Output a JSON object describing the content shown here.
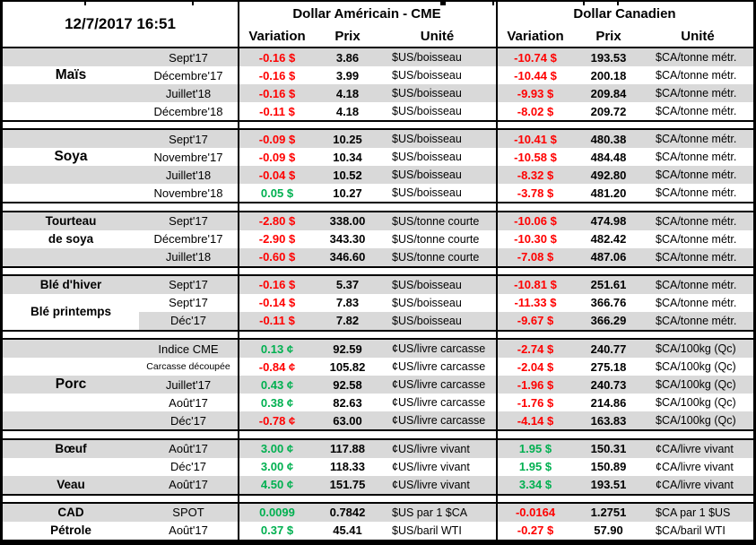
{
  "meta": {
    "timestamp": "12/7/2017 16:51"
  },
  "header": {
    "us_group": "Dollar Américain - CME",
    "ca_group": "Dollar Canadien",
    "col_variation": "Variation",
    "col_prix": "Prix",
    "col_unite": "Unité"
  },
  "colors": {
    "stripe": "#D9D9D9",
    "negative": "#FF0000",
    "positive": "#00B050"
  },
  "sections": [
    {
      "id": "mais",
      "rows": [
        {
          "label": "",
          "period": "Sept'17",
          "us_var": "-0.16 $",
          "us_dir": "neg",
          "us_price": "3.86",
          "us_unit": "$US/boisseau",
          "ca_var": "-10.74 $",
          "ca_dir": "neg",
          "ca_price": "193.53",
          "ca_unit": "$CA/tonne métr."
        },
        {
          "label": "Maïs",
          "label_big": true,
          "period": "Décembre'17",
          "us_var": "-0.16 $",
          "us_dir": "neg",
          "us_price": "3.99",
          "us_unit": "$US/boisseau",
          "ca_var": "-10.44 $",
          "ca_dir": "neg",
          "ca_price": "200.18",
          "ca_unit": "$CA/tonne métr."
        },
        {
          "label": "",
          "period": "Juillet'18",
          "us_var": "-0.16 $",
          "us_dir": "neg",
          "us_price": "4.18",
          "us_unit": "$US/boisseau",
          "ca_var": "-9.93 $",
          "ca_dir": "neg",
          "ca_price": "209.84",
          "ca_unit": "$CA/tonne métr."
        },
        {
          "label": "",
          "period": "Décembre'18",
          "us_var": "-0.11 $",
          "us_dir": "neg",
          "us_price": "4.18",
          "us_unit": "$US/boisseau",
          "ca_var": "-8.02 $",
          "ca_dir": "neg",
          "ca_price": "209.72",
          "ca_unit": "$CA/tonne métr."
        }
      ]
    },
    {
      "id": "soya",
      "rows": [
        {
          "label": "",
          "period": "Sept'17",
          "us_var": "-0.09 $",
          "us_dir": "neg",
          "us_price": "10.25",
          "us_unit": "$US/boisseau",
          "ca_var": "-10.41 $",
          "ca_dir": "neg",
          "ca_price": "480.38",
          "ca_unit": "$CA/tonne métr."
        },
        {
          "label": "Soya",
          "label_big": true,
          "period": "Novembre'17",
          "us_var": "-0.09 $",
          "us_dir": "neg",
          "us_price": "10.34",
          "us_unit": "$US/boisseau",
          "ca_var": "-10.58 $",
          "ca_dir": "neg",
          "ca_price": "484.48",
          "ca_unit": "$CA/tonne métr."
        },
        {
          "label": "",
          "period": "Juillet'18",
          "us_var": "-0.04 $",
          "us_dir": "neg",
          "us_price": "10.52",
          "us_unit": "$US/boisseau",
          "ca_var": "-8.32 $",
          "ca_dir": "neg",
          "ca_price": "492.80",
          "ca_unit": "$CA/tonne métr."
        },
        {
          "label": "",
          "period": "Novembre'18",
          "us_var": "0.05 $",
          "us_dir": "pos",
          "us_price": "10.27",
          "us_unit": "$US/boisseau",
          "ca_var": "-3.78 $",
          "ca_dir": "neg",
          "ca_price": "481.20",
          "ca_unit": "$CA/tonne métr."
        }
      ]
    },
    {
      "id": "tourteau-de-soya",
      "rows": [
        {
          "label": "Tourteau",
          "period": "Sept'17",
          "us_var": "-2.80 $",
          "us_dir": "neg",
          "us_price": "338.00",
          "us_unit": "$US/tonne courte",
          "ca_var": "-10.06 $",
          "ca_dir": "neg",
          "ca_price": "474.98",
          "ca_unit": "$CA/tonne métr."
        },
        {
          "label": "de soya",
          "period": "Décembre'17",
          "us_var": "-2.90 $",
          "us_dir": "neg",
          "us_price": "343.30",
          "us_unit": "$US/tonne courte",
          "ca_var": "-10.30 $",
          "ca_dir": "neg",
          "ca_price": "482.42",
          "ca_unit": "$CA/tonne métr."
        },
        {
          "label": "",
          "period": "Juillet'18",
          "us_var": "-0.60 $",
          "us_dir": "neg",
          "us_price": "346.60",
          "us_unit": "$US/tonne courte",
          "ca_var": "-7.08 $",
          "ca_dir": "neg",
          "ca_price": "487.06",
          "ca_unit": "$CA/tonne métr."
        }
      ]
    },
    {
      "id": "ble",
      "rows": [
        {
          "label": "Blé d'hiver",
          "period": "Sept'17",
          "us_var": "-0.16 $",
          "us_dir": "neg",
          "us_price": "5.37",
          "us_unit": "$US/boisseau",
          "ca_var": "-10.81 $",
          "ca_dir": "neg",
          "ca_price": "251.61",
          "ca_unit": "$CA/tonne métr."
        },
        {
          "label": "Blé printemps",
          "label_span2": true,
          "label_white": true,
          "period": "Sept'17",
          "us_var": "-0.14 $",
          "us_dir": "neg",
          "us_price": "7.83",
          "us_unit": "$US/boisseau",
          "ca_var": "-11.33 $",
          "ca_dir": "neg",
          "ca_price": "366.76",
          "ca_unit": "$CA/tonne métr."
        },
        {
          "label": "",
          "label_white": true,
          "period": "Déc'17",
          "us_var": "-0.11 $",
          "us_dir": "neg",
          "us_price": "7.82",
          "us_unit": "$US/boisseau",
          "ca_var": "-9.67 $",
          "ca_dir": "neg",
          "ca_price": "366.29",
          "ca_unit": "$CA/tonne métr."
        }
      ]
    },
    {
      "id": "porc",
      "rows": [
        {
          "label": "",
          "period": "Indice CME",
          "us_var": "0.13 ¢",
          "us_dir": "pos",
          "us_price": "92.59",
          "us_unit": "¢US/livre carcasse",
          "ca_var": "-2.74 $",
          "ca_dir": "neg",
          "ca_price": "240.77",
          "ca_unit": "$CA/100kg (Qc)"
        },
        {
          "label": "",
          "period": "Carcasse découpée",
          "period_small": true,
          "us_var": "-0.84 ¢",
          "us_dir": "neg",
          "us_price": "105.82",
          "us_unit": "¢US/livre carcasse",
          "ca_var": "-2.04 $",
          "ca_dir": "neg",
          "ca_price": "275.18",
          "ca_unit": "$CA/100kg (Qc)"
        },
        {
          "label": "Porc",
          "label_big": true,
          "period": "Juillet'17",
          "us_var": "0.43 ¢",
          "us_dir": "pos",
          "us_price": "92.58",
          "us_unit": "¢US/livre carcasse",
          "ca_var": "-1.96 $",
          "ca_dir": "neg",
          "ca_price": "240.73",
          "ca_unit": "$CA/100kg (Qc)"
        },
        {
          "label": "",
          "period": "Août'17",
          "us_var": "0.38 ¢",
          "us_dir": "pos",
          "us_price": "82.63",
          "us_unit": "¢US/livre carcasse",
          "ca_var": "-1.76 $",
          "ca_dir": "neg",
          "ca_price": "214.86",
          "ca_unit": "$CA/100kg (Qc)"
        },
        {
          "label": "",
          "period": "Déc'17",
          "us_var": "-0.78 ¢",
          "us_dir": "neg",
          "us_price": "63.00",
          "us_unit": "¢US/livre carcasse",
          "ca_var": "-4.14 $",
          "ca_dir": "neg",
          "ca_price": "163.83",
          "ca_unit": "$CA/100kg (Qc)"
        }
      ]
    },
    {
      "id": "boeuf-veau",
      "rows": [
        {
          "label": "Bœuf",
          "period": "Août'17",
          "us_var": "3.00 ¢",
          "us_dir": "pos",
          "us_price": "117.88",
          "us_unit": "¢US/livre vivant",
          "ca_var": "1.95 $",
          "ca_dir": "pos",
          "ca_price": "150.31",
          "ca_unit": "¢CA/livre vivant"
        },
        {
          "label": "",
          "period": "Déc'17",
          "us_var": "3.00 ¢",
          "us_dir": "pos",
          "us_price": "118.33",
          "us_unit": "¢US/livre vivant",
          "ca_var": "1.95 $",
          "ca_dir": "pos",
          "ca_price": "150.89",
          "ca_unit": "¢CA/livre vivant"
        },
        {
          "label": "Veau",
          "period": "Août'17",
          "us_var": "4.50 ¢",
          "us_dir": "pos",
          "us_price": "151.75",
          "us_unit": "¢US/livre vivant",
          "ca_var": "3.34 $",
          "ca_dir": "pos",
          "ca_price": "193.51",
          "ca_unit": "¢CA/livre vivant"
        }
      ]
    },
    {
      "id": "cad-petrole",
      "rows": [
        {
          "label": "CAD",
          "period": "SPOT",
          "us_var": "0.0099",
          "us_dir": "pos",
          "us_price": "0.7842",
          "us_unit": "$US par 1 $CA",
          "ca_var": "-0.0164",
          "ca_dir": "neg",
          "ca_price": "1.2751",
          "ca_unit": "$CA par 1 $US"
        },
        {
          "label": "Pétrole",
          "period": "Août'17",
          "us_var": "0.37 $",
          "us_dir": "pos",
          "us_price": "45.41",
          "us_unit": "$US/baril WTI",
          "ca_var": "-0.27 $",
          "ca_dir": "neg",
          "ca_price": "57.90",
          "ca_unit": "$CA/baril WTI"
        }
      ]
    }
  ]
}
